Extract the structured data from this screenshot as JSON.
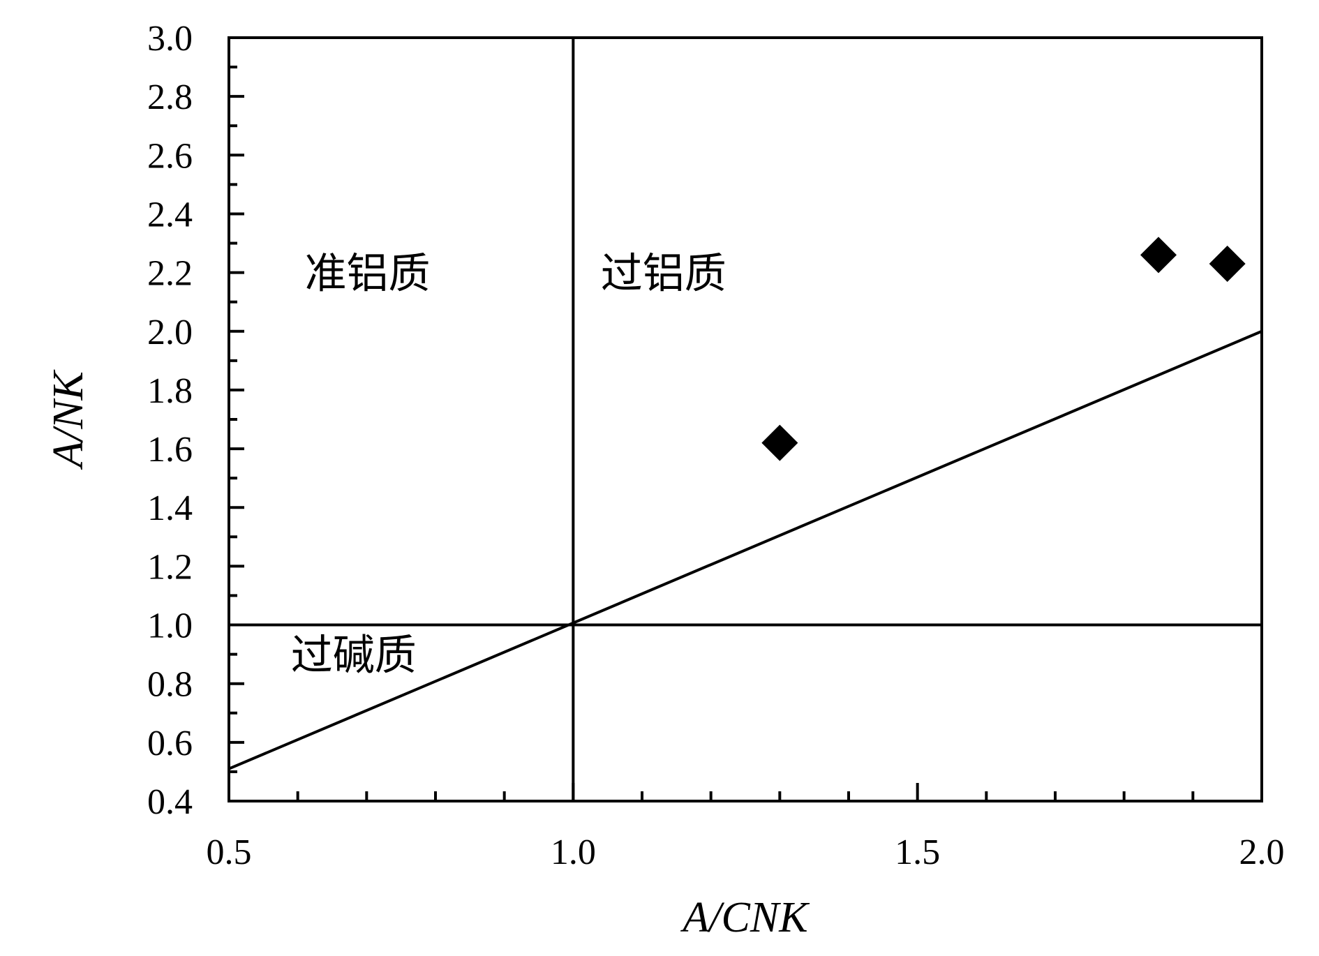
{
  "chart_data": {
    "type": "scatter",
    "title": "",
    "xlabel": "A/CNK",
    "ylabel": "A/NK",
    "xlim": [
      0.5,
      2.0
    ],
    "ylim": [
      0.4,
      3.0
    ],
    "x_ticks": [
      0.5,
      1.0,
      1.5,
      2.0
    ],
    "x_tick_labels": [
      "0.5",
      "1.0",
      "1.5",
      "2.0"
    ],
    "x_minor_step": 0.1,
    "y_ticks": [
      0.4,
      0.6,
      0.8,
      1.0,
      1.2,
      1.4,
      1.6,
      1.8,
      2.0,
      2.2,
      2.4,
      2.6,
      2.8,
      3.0
    ],
    "y_tick_labels": [
      "0.4",
      "0.6",
      "0.8",
      "1.0",
      "1.2",
      "1.4",
      "1.6",
      "1.8",
      "2.0",
      "2.2",
      "2.4",
      "2.6",
      "2.8",
      "3.0"
    ],
    "y_minor_step": 0.1,
    "grid": false,
    "marker": "filled-diamond",
    "marker_color": "#000000",
    "series": [
      {
        "points": [
          {
            "x": 1.3,
            "y": 1.62
          },
          {
            "x": 1.85,
            "y": 2.26
          },
          {
            "x": 1.95,
            "y": 2.23
          }
        ]
      }
    ],
    "boundary_lines": [
      {
        "from": [
          1.0,
          0.4
        ],
        "to": [
          1.0,
          3.0
        ]
      },
      {
        "from": [
          0.5,
          1.0
        ],
        "to": [
          2.0,
          1.0
        ]
      },
      {
        "from": [
          0.5,
          0.51
        ],
        "to": [
          2.0,
          2.0
        ]
      }
    ],
    "region_labels": [
      {
        "text": "准铝质",
        "x": 0.61,
        "y": 2.2
      },
      {
        "text": "过铝质",
        "x": 1.04,
        "y": 2.2
      },
      {
        "text": "过碱质",
        "x": 0.59,
        "y": 0.9
      }
    ]
  }
}
